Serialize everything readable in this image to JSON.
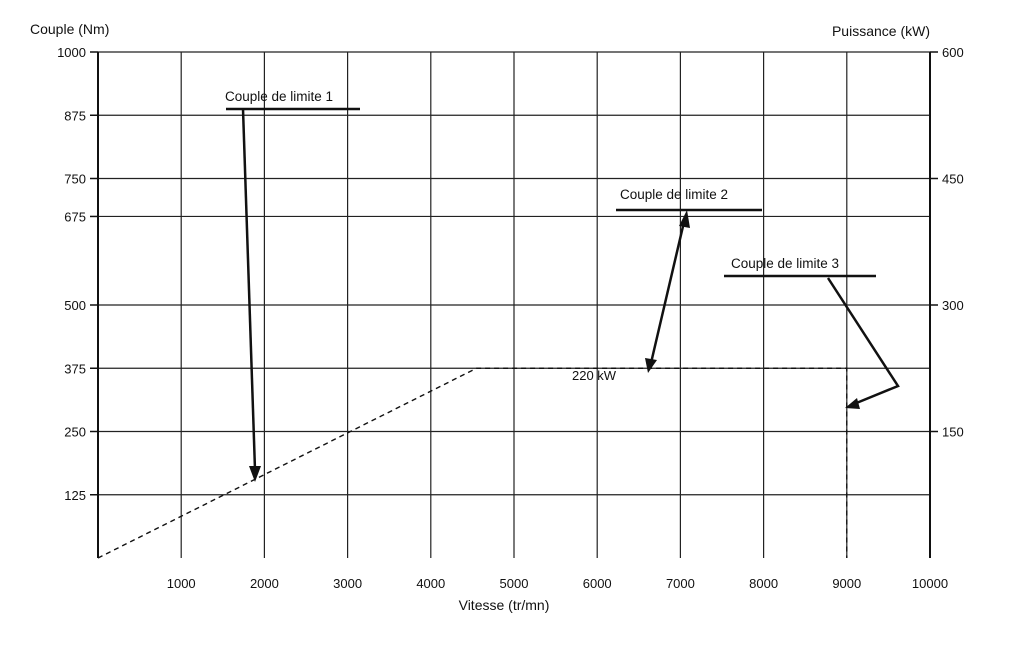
{
  "chart_data": {
    "type": "line",
    "title": "",
    "xlabel": "Vitesse (tr/mn)",
    "ylabel_left": "Couple (Nm)",
    "ylabel_right": "Puissance (kW)",
    "xlim": [
      0,
      10000
    ],
    "ylim_left": [
      0,
      1000
    ],
    "ylim_right": [
      0,
      600
    ],
    "x_ticks": [
      1000,
      2000,
      3000,
      4000,
      5000,
      6000,
      7000,
      8000,
      9000,
      10000
    ],
    "x_tick_labels": [
      "1000",
      "2000",
      "3000",
      "4000",
      "5000",
      "6000",
      "7000",
      "8000",
      "9000",
      "10000"
    ],
    "y_left_ticks": [
      125,
      250,
      375,
      500,
      675,
      750,
      875,
      1000
    ],
    "y_left_tick_labels": [
      "125",
      "250",
      "375",
      "500",
      "675",
      "750",
      "875",
      "1000"
    ],
    "y_right_ticks": [
      150,
      300,
      450,
      600
    ],
    "y_right_tick_labels": [
      "150",
      "300",
      "450",
      "600"
    ],
    "grid": true,
    "series": [
      {
        "x": [
          0,
          4550,
          9000,
          9000
        ],
        "y": [
          0,
          375,
          375,
          0
        ],
        "style": "dashed"
      }
    ],
    "curve_label": "220 kW",
    "annotations": [
      {
        "text": "Couple de limite 1",
        "target": [
          1850,
          150
        ]
      },
      {
        "text": "Couple de limite 2",
        "target": [
          6600,
          375
        ]
      },
      {
        "text": "Couple de limite 3",
        "target": [
          9000,
          295
        ]
      }
    ]
  }
}
